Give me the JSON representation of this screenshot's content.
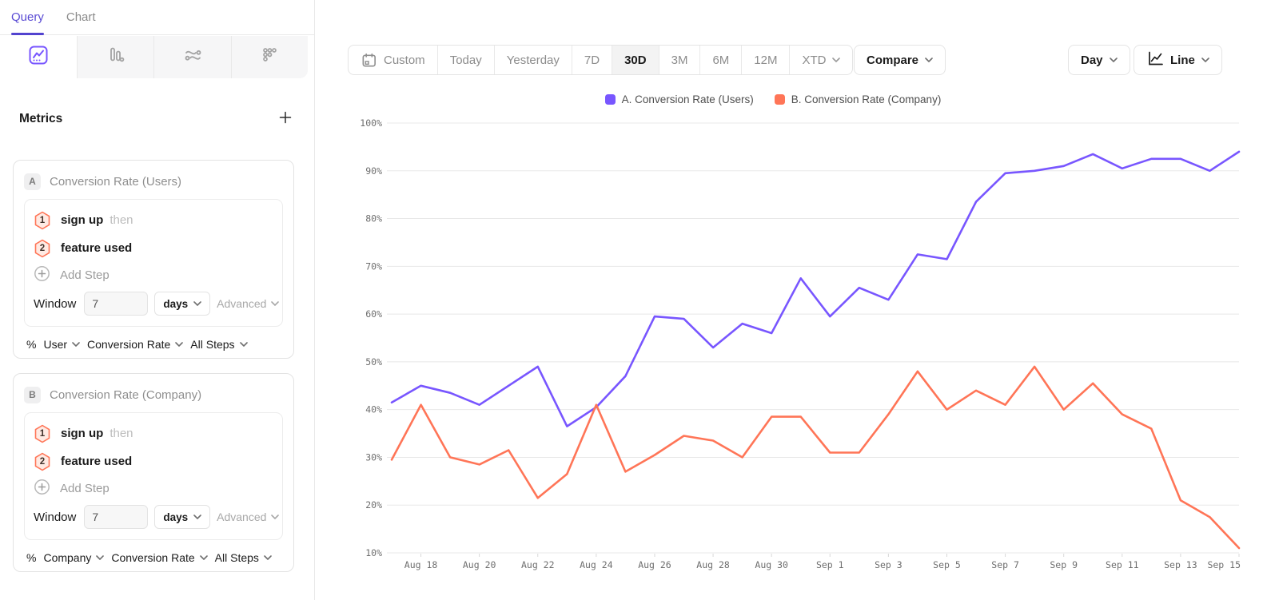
{
  "sidebar": {
    "tabs": [
      {
        "label": "Query",
        "active": true
      },
      {
        "label": "Chart",
        "active": false
      }
    ],
    "chart_type_icons": [
      "insights-line-icon",
      "funnel-bars-icon",
      "flows-icon",
      "retention-dots-icon"
    ],
    "metrics_header": {
      "title": "Metrics",
      "add_icon": "plus-icon"
    },
    "metric_cards": [
      {
        "badge": "A",
        "title": "Conversion Rate (Users)",
        "steps": [
          {
            "num": "1",
            "event": "sign up",
            "suffix": "then"
          },
          {
            "num": "2",
            "event": "feature used",
            "suffix": ""
          }
        ],
        "add_step_label": "Add Step",
        "window": {
          "label": "Window",
          "value": "7",
          "unit": "days",
          "advanced_label": "Advanced"
        },
        "measurement": {
          "prefix": "%",
          "entity": "User",
          "metric": "Conversion Rate",
          "steps_scope": "All Steps"
        }
      },
      {
        "badge": "B",
        "title": "Conversion Rate (Company)",
        "steps": [
          {
            "num": "1",
            "event": "sign up",
            "suffix": "then"
          },
          {
            "num": "2",
            "event": "feature used",
            "suffix": ""
          }
        ],
        "add_step_label": "Add Step",
        "window": {
          "label": "Window",
          "value": "7",
          "unit": "days",
          "advanced_label": "Advanced"
        },
        "measurement": {
          "prefix": "%",
          "entity": "Company",
          "metric": "Conversion Rate",
          "steps_scope": "All Steps"
        }
      }
    ]
  },
  "toolbar": {
    "date_ranges": [
      {
        "label": "Custom",
        "icon": "calendar-icon",
        "active": false,
        "chevron": false
      },
      {
        "label": "Today",
        "active": false,
        "chevron": false
      },
      {
        "label": "Yesterday",
        "active": false,
        "chevron": false
      },
      {
        "label": "7D",
        "active": false,
        "chevron": false
      },
      {
        "label": "30D",
        "active": true,
        "chevron": false
      },
      {
        "label": "3M",
        "active": false,
        "chevron": false
      },
      {
        "label": "6M",
        "active": false,
        "chevron": false
      },
      {
        "label": "12M",
        "active": false,
        "chevron": false
      },
      {
        "label": "XTD",
        "active": false,
        "chevron": true
      }
    ],
    "compare_label": "Compare",
    "interval_label": "Day",
    "chart_style_label": "Line"
  },
  "chart_data": {
    "type": "line",
    "x": [
      "Aug 17",
      "Aug 18",
      "Aug 19",
      "Aug 20",
      "Aug 21",
      "Aug 22",
      "Aug 23",
      "Aug 24",
      "Aug 25",
      "Aug 26",
      "Aug 27",
      "Aug 28",
      "Aug 29",
      "Aug 30",
      "Aug 31",
      "Sep 1",
      "Sep 2",
      "Sep 3",
      "Sep 4",
      "Sep 5",
      "Sep 6",
      "Sep 7",
      "Sep 8",
      "Sep 9",
      "Sep 10",
      "Sep 11",
      "Sep 12",
      "Sep 13",
      "Sep 14",
      "Sep 15"
    ],
    "x_tick_labels": [
      "Aug 18",
      "Aug 20",
      "Aug 22",
      "Aug 24",
      "Aug 26",
      "Aug 28",
      "Aug 30",
      "Sep 1",
      "Sep 3",
      "Sep 5",
      "Sep 7",
      "Sep 9",
      "Sep 11",
      "Sep 13",
      "Sep 15"
    ],
    "y_ticks": [
      "100%",
      "90%",
      "80%",
      "70%",
      "60%",
      "50%",
      "40%",
      "30%",
      "20%",
      "10%"
    ],
    "ylim": [
      10,
      100
    ],
    "y_unit": "%",
    "grid": true,
    "legend_position": "top",
    "series": [
      {
        "name": "A. Conversion Rate (Users)",
        "color": "#7856FF",
        "values": [
          41.5,
          45,
          43.5,
          41,
          45,
          49,
          36.5,
          40.5,
          47,
          59.5,
          59,
          53,
          58,
          56,
          67.5,
          59.5,
          65.5,
          63,
          72.5,
          71.5,
          83.5,
          89.5,
          90,
          91,
          93.5,
          90.5,
          92.5,
          92.5,
          90,
          94
        ]
      },
      {
        "name": "B. Conversion Rate (Company)",
        "color": "#FF7557",
        "values": [
          29.5,
          41,
          30,
          28.5,
          31.5,
          21.5,
          26.5,
          41,
          27,
          30.5,
          34.5,
          33.5,
          30,
          38.5,
          38.5,
          31,
          31,
          39,
          48,
          40,
          44,
          41,
          49,
          40,
          45.5,
          39,
          36,
          21,
          17.5,
          11
        ]
      }
    ]
  }
}
